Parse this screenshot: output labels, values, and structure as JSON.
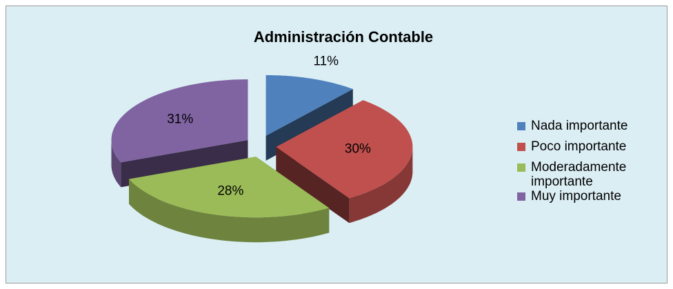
{
  "chart_data": {
    "type": "pie",
    "title": "Administración Contable",
    "categories": [
      "Nada importante",
      "Poco importante",
      "Moderadamente importante",
      "Muy importante"
    ],
    "values": [
      11,
      30,
      28,
      31
    ],
    "value_labels": [
      "11%",
      "30%",
      "28%",
      "31%"
    ],
    "colors": [
      "#4f81bd",
      "#c0504d",
      "#9bbb59",
      "#8064a2"
    ],
    "legend": "right"
  }
}
